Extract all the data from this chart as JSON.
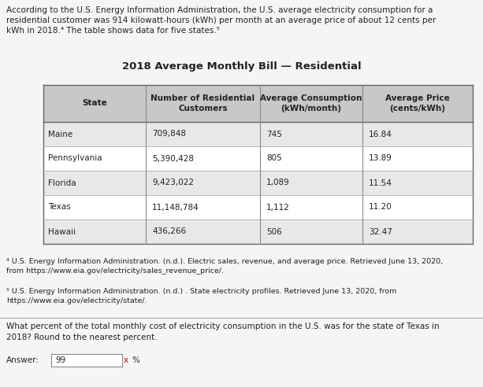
{
  "intro_text": "According to the U.S. Energy Information Administration, the U.S. average electricity consumption for a\nresidential customer was 914 kilowatt-hours (kWh) per month at an average price of about 12 cents per\nkWh in 2018.⁴ The table shows data for five states.⁵",
  "table_title": "2018 Average Monthly Bill — Residential",
  "col_headers": [
    "State",
    "Number of Residential\nCustomers",
    "Average Consumption\n(kWh/month)",
    "Average Price\n(cents/kWh)"
  ],
  "rows": [
    [
      "Maine",
      "709,848",
      "745",
      "16.84"
    ],
    [
      "Pennsylvania",
      "5,390,428",
      "805",
      "13.89"
    ],
    [
      "Florida",
      "9,423,022",
      "1,089",
      "11.54"
    ],
    [
      "Texas",
      "11,148,784",
      "1,112",
      "11.20"
    ],
    [
      "Hawaii",
      "436,266",
      "506",
      "32.47"
    ]
  ],
  "footnote4": "⁴ U.S. Energy Information Administration. (n.d.). Electric sales, revenue, and average price. Retrieved June 13, 2020,\nfrom https://www.eia.gov/electricity/sales_revenue_price/.",
  "footnote5": "⁵ U.S. Energy Information Administration. (n.d.) . State electricity profiles. Retrieved June 13, 2020, from\nhttps://www.eia.gov/electricity/state/.",
  "question_text": "What percent of the total monthly cost of electricity consumption in the U.S. was for the state of Texas in\n2018? Round to the nearest percent.",
  "answer_label": "Answer:",
  "answer_value": "99",
  "answer_suffix": "%",
  "bg_color": "#f5f5f5",
  "table_bg": "#ffffff",
  "header_bg": "#d0d0d0",
  "border_color": "#888888",
  "text_color": "#222222",
  "answer_box_color": "#ffffff",
  "italic_title_italic": "Electric sales, revenue, and average price",
  "italic_title5": "State electricity profiles"
}
